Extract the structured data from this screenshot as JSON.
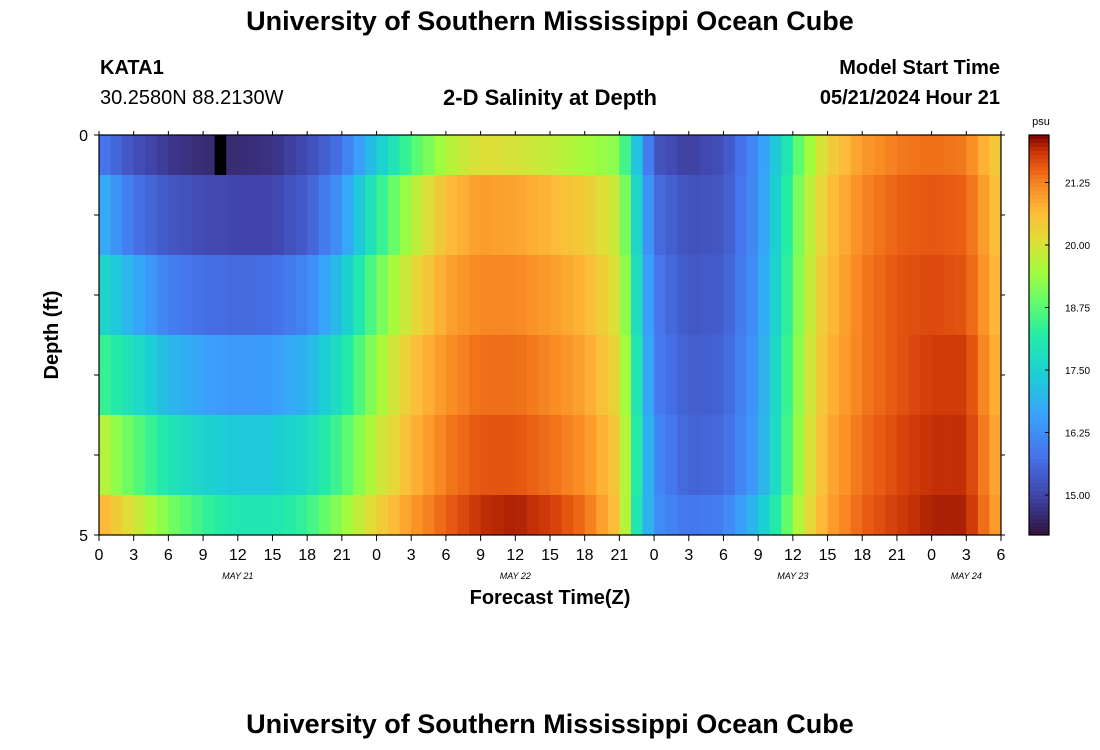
{
  "page_title": "University of Southern Mississippi Ocean Cube",
  "footer_title": "University of Southern Mississippi Ocean Cube",
  "station": {
    "id": "KATA1",
    "coords": "30.2580N  88.2130W"
  },
  "plot_title": "2-D Salinity at Depth",
  "model": {
    "label": "Model Start Time",
    "value": "05/21/2024 Hour 21"
  },
  "chart_data": {
    "type": "heatmap",
    "title": "2-D Salinity at Depth",
    "xlabel": "Forecast Time(Z)",
    "ylabel": "Depth (ft)",
    "ylim": [
      0,
      5
    ],
    "y_ticks": [
      "0",
      "5"
    ],
    "x_hours_total": 78,
    "x_tick_labels": [
      "0",
      "3",
      "6",
      "9",
      "12",
      "15",
      "18",
      "21",
      "0",
      "3",
      "6",
      "9",
      "12",
      "15",
      "18",
      "21",
      "0",
      "3",
      "6",
      "9",
      "12",
      "15",
      "18",
      "21",
      "0",
      "3",
      "6"
    ],
    "date_labels": [
      {
        "label": "MAY 21",
        "hour": 12
      },
      {
        "label": "MAY 22",
        "hour": 36
      },
      {
        "label": "MAY 23",
        "hour": 60
      },
      {
        "label": "MAY 24",
        "hour": 75
      }
    ],
    "colorbar": {
      "unit": "psu",
      "min": 14.2,
      "max": 22.2,
      "ticks": [
        "21.25",
        "20.00",
        "18.75",
        "17.50",
        "16.25",
        "15.00"
      ]
    },
    "depth_layers": [
      "0-0.5",
      "0.5-1.5",
      "1.5-2.5",
      "2.5-3.5",
      "3.5-4.5",
      "4.5-5"
    ],
    "series": [
      {
        "name": "0-0.5 ft",
        "keyframes": [
          [
            0,
            15.9
          ],
          [
            3,
            15.2
          ],
          [
            6,
            14.8
          ],
          [
            9,
            14.6
          ],
          [
            12,
            14.6
          ],
          [
            15,
            14.7
          ],
          [
            18,
            15.1
          ],
          [
            21,
            15.8
          ],
          [
            24,
            17.3
          ],
          [
            27,
            18.6
          ],
          [
            30,
            19.6
          ],
          [
            33,
            20.1
          ],
          [
            36,
            20.0
          ],
          [
            39,
            19.8
          ],
          [
            42,
            19.5
          ],
          [
            45,
            19.2
          ],
          [
            46.5,
            17.2
          ],
          [
            48,
            15.3
          ],
          [
            51,
            14.9
          ],
          [
            54,
            15.2
          ],
          [
            57,
            16.3
          ],
          [
            59,
            17.6
          ],
          [
            61,
            19.2
          ],
          [
            63,
            20.3
          ],
          [
            66,
            21.0
          ],
          [
            69,
            21.3
          ],
          [
            72,
            21.4
          ],
          [
            75,
            21.3
          ],
          [
            77,
            20.6
          ],
          [
            78,
            20.3
          ]
        ]
      },
      {
        "name": "0.5-1.5 ft",
        "keyframes": [
          [
            0,
            16.9
          ],
          [
            3,
            15.8
          ],
          [
            6,
            15.3
          ],
          [
            9,
            15.1
          ],
          [
            12,
            15.0
          ],
          [
            15,
            15.0
          ],
          [
            18,
            15.4
          ],
          [
            21,
            16.4
          ],
          [
            24,
            18.2
          ],
          [
            27,
            19.6
          ],
          [
            30,
            20.6
          ],
          [
            33,
            21.0
          ],
          [
            36,
            20.9
          ],
          [
            39,
            20.7
          ],
          [
            42,
            20.4
          ],
          [
            45,
            19.8
          ],
          [
            46.5,
            17.6
          ],
          [
            48,
            15.7
          ],
          [
            51,
            15.2
          ],
          [
            54,
            15.3
          ],
          [
            57,
            16.3
          ],
          [
            59,
            17.8
          ],
          [
            61,
            19.5
          ],
          [
            63,
            20.5
          ],
          [
            66,
            21.2
          ],
          [
            69,
            21.5
          ],
          [
            72,
            21.6
          ],
          [
            75,
            21.5
          ],
          [
            77,
            20.8
          ],
          [
            78,
            20.4
          ]
        ]
      },
      {
        "name": "1.5-2.5 ft",
        "keyframes": [
          [
            0,
            17.7
          ],
          [
            3,
            16.8
          ],
          [
            6,
            16.0
          ],
          [
            9,
            15.7
          ],
          [
            12,
            15.6
          ],
          [
            15,
            15.7
          ],
          [
            18,
            16.1
          ],
          [
            21,
            17.2
          ],
          [
            24,
            18.9
          ],
          [
            27,
            20.1
          ],
          [
            30,
            20.9
          ],
          [
            33,
            21.2
          ],
          [
            36,
            21.2
          ],
          [
            39,
            21.0
          ],
          [
            42,
            20.7
          ],
          [
            45,
            20.0
          ],
          [
            46.5,
            17.8
          ],
          [
            48,
            15.9
          ],
          [
            51,
            15.3
          ],
          [
            54,
            15.4
          ],
          [
            57,
            16.4
          ],
          [
            59,
            17.9
          ],
          [
            61,
            19.6
          ],
          [
            63,
            20.6
          ],
          [
            66,
            21.3
          ],
          [
            69,
            21.6
          ],
          [
            72,
            21.7
          ],
          [
            75,
            21.6
          ],
          [
            77,
            20.9
          ],
          [
            78,
            20.5
          ]
        ]
      },
      {
        "name": "2.5-3.5 ft",
        "keyframes": [
          [
            0,
            18.5
          ],
          [
            3,
            17.8
          ],
          [
            6,
            17.0
          ],
          [
            9,
            16.6
          ],
          [
            12,
            16.4
          ],
          [
            15,
            16.5
          ],
          [
            18,
            16.9
          ],
          [
            21,
            17.9
          ],
          [
            24,
            19.4
          ],
          [
            27,
            20.5
          ],
          [
            30,
            21.1
          ],
          [
            33,
            21.4
          ],
          [
            36,
            21.4
          ],
          [
            39,
            21.2
          ],
          [
            42,
            20.9
          ],
          [
            45,
            20.2
          ],
          [
            46.5,
            18.0
          ],
          [
            48,
            16.0
          ],
          [
            51,
            15.4
          ],
          [
            54,
            15.5
          ],
          [
            57,
            16.5
          ],
          [
            59,
            18.0
          ],
          [
            61,
            19.7
          ],
          [
            63,
            20.7
          ],
          [
            66,
            21.3
          ],
          [
            69,
            21.6
          ],
          [
            72,
            21.8
          ],
          [
            75,
            21.8
          ],
          [
            77,
            21.0
          ],
          [
            78,
            20.6
          ]
        ]
      },
      {
        "name": "3.5-4.5 ft",
        "keyframes": [
          [
            0,
            19.8
          ],
          [
            3,
            18.8
          ],
          [
            6,
            18.0
          ],
          [
            9,
            17.5
          ],
          [
            12,
            17.3
          ],
          [
            15,
            17.3
          ],
          [
            18,
            17.7
          ],
          [
            21,
            18.6
          ],
          [
            24,
            19.8
          ],
          [
            27,
            20.7
          ],
          [
            30,
            21.3
          ],
          [
            33,
            21.6
          ],
          [
            36,
            21.6
          ],
          [
            39,
            21.4
          ],
          [
            42,
            21.1
          ],
          [
            45,
            20.4
          ],
          [
            46.5,
            18.2
          ],
          [
            48,
            16.2
          ],
          [
            51,
            15.5
          ],
          [
            54,
            15.6
          ],
          [
            57,
            16.6
          ],
          [
            59,
            18.1
          ],
          [
            61,
            19.8
          ],
          [
            63,
            20.8
          ],
          [
            66,
            21.4
          ],
          [
            69,
            21.7
          ],
          [
            72,
            21.9
          ],
          [
            75,
            21.9
          ],
          [
            77,
            21.1
          ],
          [
            78,
            20.7
          ]
        ]
      },
      {
        "name": "4.5-5 ft",
        "keyframes": [
          [
            0,
            20.8
          ],
          [
            3,
            20.0
          ],
          [
            6,
            19.1
          ],
          [
            9,
            18.4
          ],
          [
            12,
            18.0
          ],
          [
            15,
            18.0
          ],
          [
            18,
            18.4
          ],
          [
            21,
            19.3
          ],
          [
            24,
            20.3
          ],
          [
            27,
            21.0
          ],
          [
            30,
            21.5
          ],
          [
            33,
            21.9
          ],
          [
            36,
            22.0
          ],
          [
            39,
            21.8
          ],
          [
            42,
            21.4
          ],
          [
            45,
            20.5
          ],
          [
            46.5,
            18.0
          ],
          [
            48,
            16.3
          ],
          [
            51,
            15.8
          ],
          [
            54,
            16.0
          ],
          [
            57,
            17.1
          ],
          [
            59,
            18.5
          ],
          [
            61,
            20.0
          ],
          [
            63,
            20.9
          ],
          [
            66,
            21.5
          ],
          [
            69,
            21.8
          ],
          [
            72,
            22.0
          ],
          [
            75,
            22.0
          ],
          [
            77,
            21.2
          ],
          [
            78,
            20.8
          ]
        ]
      }
    ],
    "missing_cell": {
      "layer": 0,
      "hour": 10
    }
  }
}
